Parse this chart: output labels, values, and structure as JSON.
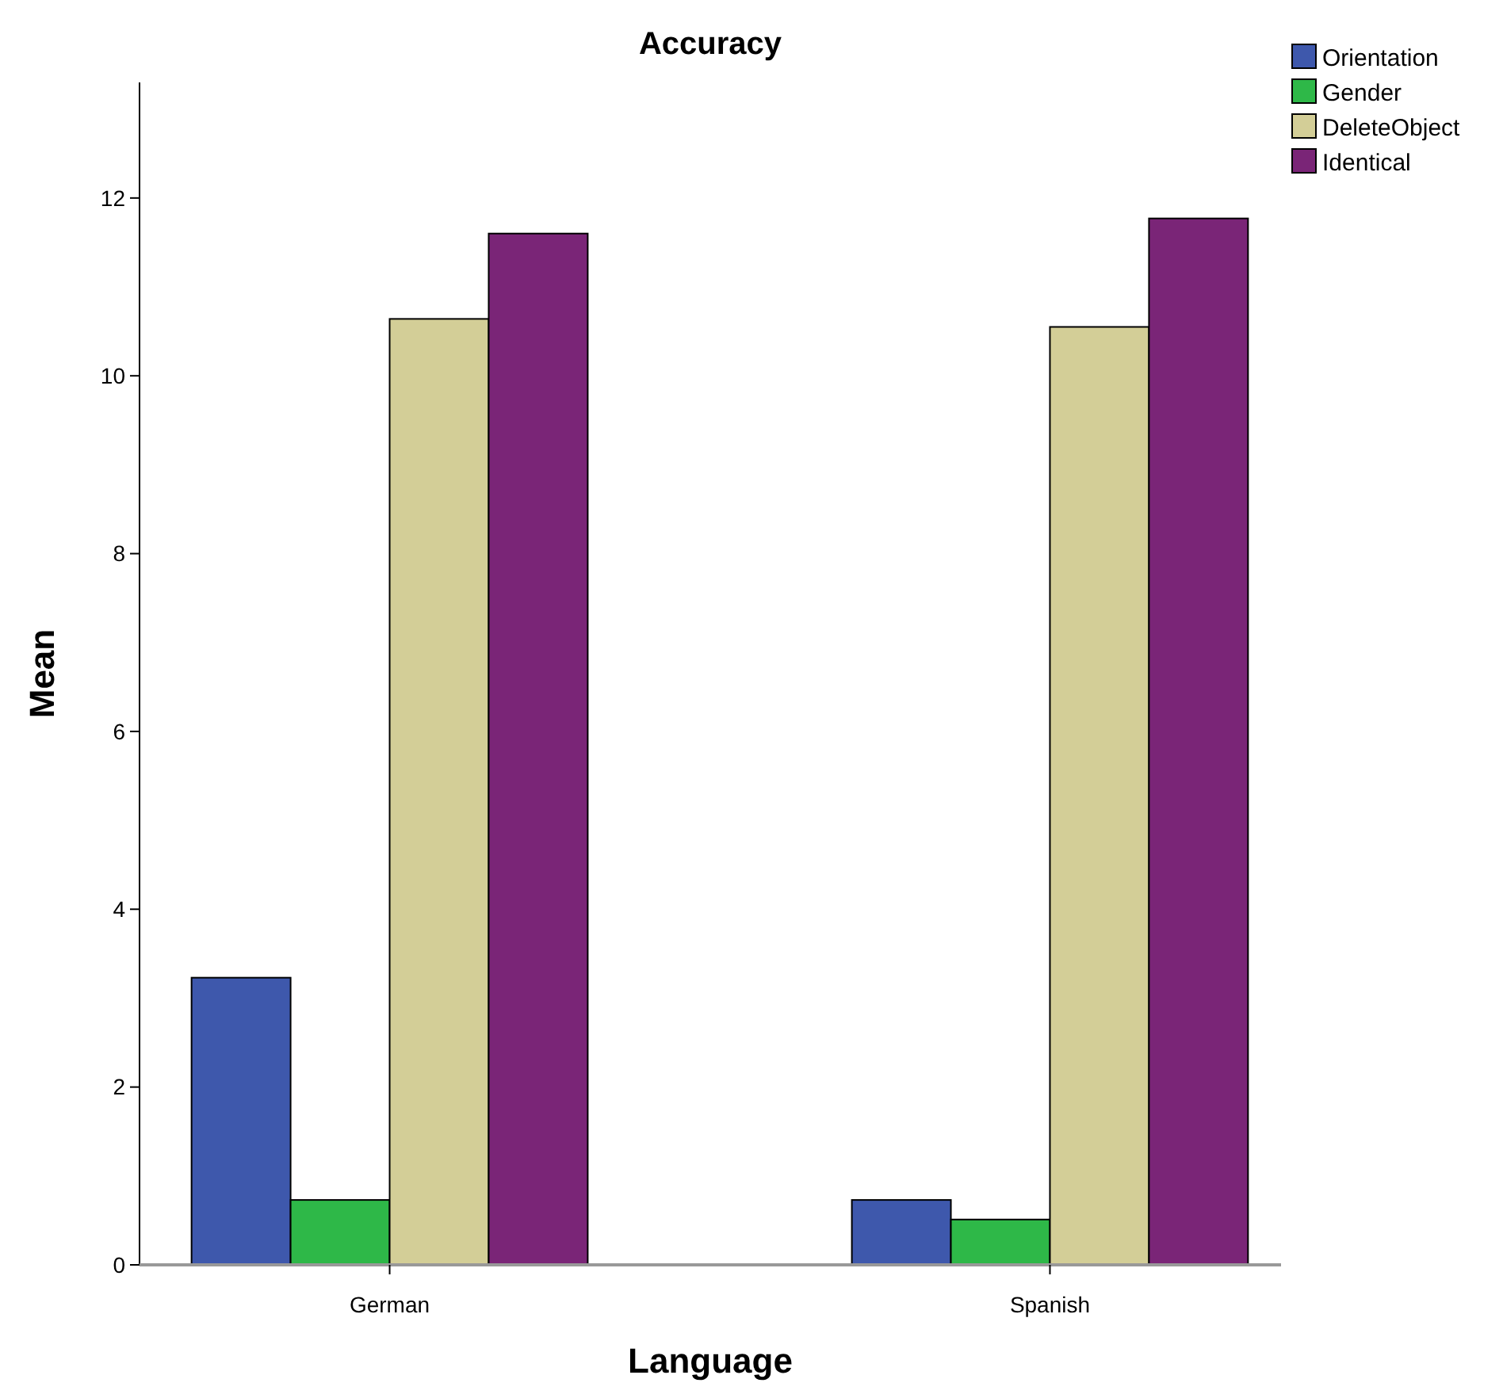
{
  "chart_data": {
    "type": "bar",
    "title": "Accuracy",
    "xlabel": "Language",
    "ylabel": "Mean",
    "categories": [
      "German",
      "Spanish"
    ],
    "series": [
      {
        "name": "Orientation",
        "color": "#3e58ac",
        "values": [
          3.23,
          0.73
        ]
      },
      {
        "name": "Gender",
        "color": "#2eb848",
        "values": [
          0.73,
          0.51
        ]
      },
      {
        "name": "DeleteObject",
        "color": "#d3ce97",
        "values": [
          10.64,
          10.55
        ]
      },
      {
        "name": "Identical",
        "color": "#7a2577",
        "values": [
          11.6,
          11.77
        ]
      }
    ],
    "ylim": [
      0,
      13.3
    ],
    "yticks": [
      0,
      2,
      4,
      6,
      8,
      10,
      12
    ],
    "grid": false,
    "legend": "top right"
  }
}
